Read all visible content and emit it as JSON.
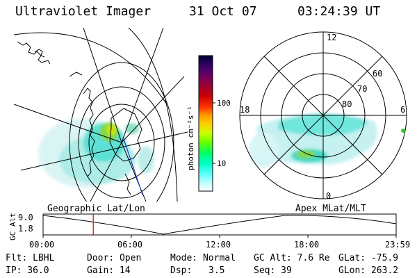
{
  "header": {
    "title": "Ultraviolet Imager",
    "date": "31 Oct 07",
    "time": "03:24:39 UT"
  },
  "left_map": {
    "label": "Geographic Lat/Lon"
  },
  "right_map": {
    "label": "Apex MLat/MLT",
    "mlt_labels": [
      "12",
      "18",
      "6",
      "0"
    ],
    "lat_labels": [
      "60",
      "70",
      "80"
    ]
  },
  "colorbar": {
    "unit_label": "photon cm⁻²s⁻¹",
    "ticks": [
      "100",
      "10"
    ],
    "scale": "log",
    "colors": [
      "#000033",
      "#330066",
      "#660066",
      "#990033",
      "#cc0000",
      "#ff3300",
      "#ff9900",
      "#ffcc00",
      "#ccff00",
      "#66ff00",
      "#00ff66",
      "#00ffcc",
      "#66ffff",
      "#ccffff",
      "#ffffff"
    ]
  },
  "timeline": {
    "axis_label": "GC Alt",
    "y_ticks": [
      "9.0",
      "1.8"
    ],
    "x_ticks": [
      "00:00",
      "06:00",
      "12:00",
      "18:00",
      "23:59"
    ],
    "current_time_hours": 3.41,
    "marker_color": "#cc0000"
  },
  "info": {
    "flt": "Flt: LBHL",
    "ip": "IP: 36.0",
    "door": "Door: Open",
    "gain": "Gain: 14",
    "mode": "Mode: Normal",
    "dsp_label": "Dsp:",
    "dsp_value": "3.5",
    "gc_alt": "GC Alt: 7.6 Re",
    "seq": "Seq: 39",
    "glat": "GLat: -75.9",
    "glon": "GLon: 263.2"
  }
}
